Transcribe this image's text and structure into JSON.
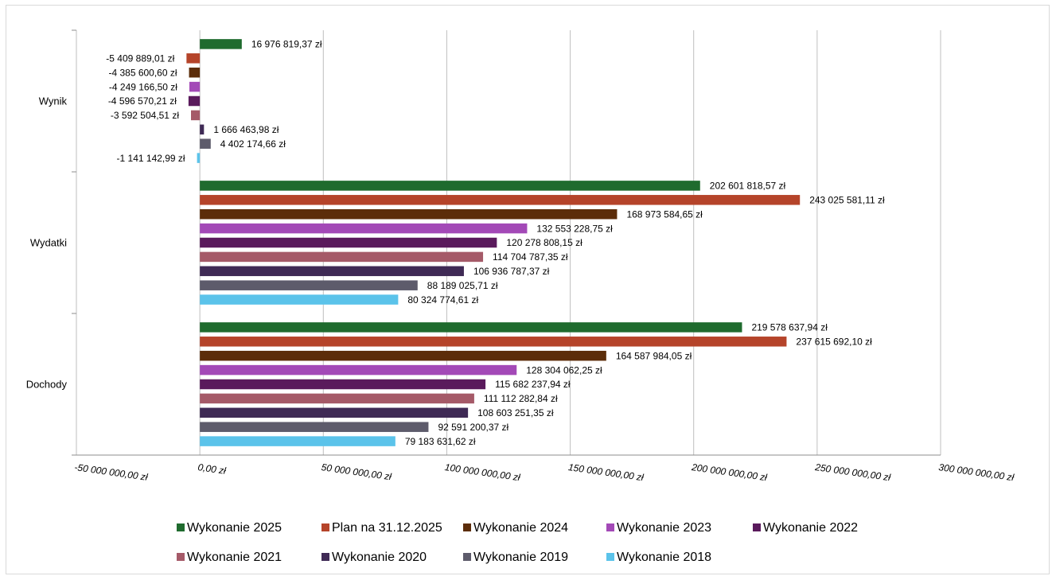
{
  "chart_data": {
    "type": "bar",
    "orientation": "horizontal",
    "categories": [
      "Wynik",
      "Wydatki",
      "Dochody"
    ],
    "series": [
      {
        "name": "Wykonanie 2025",
        "color": "#1f6b2e",
        "values": [
          16976819.37,
          202601818.57,
          219578637.94
        ],
        "labels": [
          "16 976 819,37 zł",
          "202 601 818,57 zł",
          "219 578 637,94 zł"
        ]
      },
      {
        "name": "Plan na 31.12.2025",
        "color": "#b5442a",
        "values": [
          -5409889.01,
          243025581.11,
          237615692.1
        ],
        "labels": [
          "-5 409 889,01 zł",
          "243 025 581,11 zł",
          "237 615 692,10 zł"
        ]
      },
      {
        "name": "Wykonanie 2024",
        "color": "#5c2d0a",
        "values": [
          -4385600.6,
          168973584.65,
          164587984.05
        ],
        "labels": [
          "-4 385 600,60 zł",
          "168 973 584,65 zł",
          "164 587 984,05 zł"
        ]
      },
      {
        "name": "Wykonanie 2023",
        "color": "#a349b7",
        "values": [
          -4249166.5,
          132553228.75,
          128304062.25
        ],
        "labels": [
          "-4 249 166,50 zł",
          "132 553 228,75 zł",
          "128 304 062,25 zł"
        ]
      },
      {
        "name": "Wykonanie 2022",
        "color": "#5a1a5c",
        "values": [
          -4596570.21,
          120278808.15,
          115682237.94
        ],
        "labels": [
          "-4 596 570,21 zł",
          "120 278 808,15 zł",
          "115 682 237,94 zł"
        ]
      },
      {
        "name": "Wykonanie 2021",
        "color": "#a55a68",
        "values": [
          -3592504.51,
          114704787.35,
          111112282.84
        ],
        "labels": [
          "-3 592 504,51 zł",
          "114 704 787,35 zł",
          "111 112 282,84 zł"
        ]
      },
      {
        "name": "Wykonanie 2020",
        "color": "#3f2a55",
        "values": [
          1666463.98,
          106936787.37,
          108603251.35
        ],
        "labels": [
          "1 666 463,98 zł",
          "106 936 787,37 zł",
          "108 603 251,35 zł"
        ]
      },
      {
        "name": "Wykonanie 2019",
        "color": "#5d5b6b",
        "values": [
          4402174.66,
          88189025.71,
          92591200.37
        ],
        "labels": [
          "4 402 174,66 zł",
          "88 189 025,71 zł",
          "92 591 200,37 zł"
        ]
      },
      {
        "name": "Wykonanie 2018",
        "color": "#5bc3ea",
        "values": [
          -1141142.99,
          80324774.61,
          79183631.62
        ],
        "labels": [
          "-1 141 142,99 zł",
          "80 324 774,61 zł",
          "79 183 631,62 zł"
        ]
      }
    ],
    "x_ticks": [
      -50000000,
      0,
      50000000,
      100000000,
      150000000,
      200000000,
      250000000,
      300000000
    ],
    "x_tick_labels": [
      "-50 000 000,00 zł",
      "0,00 zł",
      "50 000 000,00 zł",
      "100 000 000,00 zł",
      "150 000 000,00 zł",
      "200 000 000,00 zł",
      "250 000 000,00 zł",
      "300 000 000,00 zł"
    ],
    "xlim": [
      -50000000,
      300000000
    ],
    "grid": true,
    "legend_position": "bottom",
    "title": "",
    "xlabel": "",
    "ylabel": ""
  }
}
